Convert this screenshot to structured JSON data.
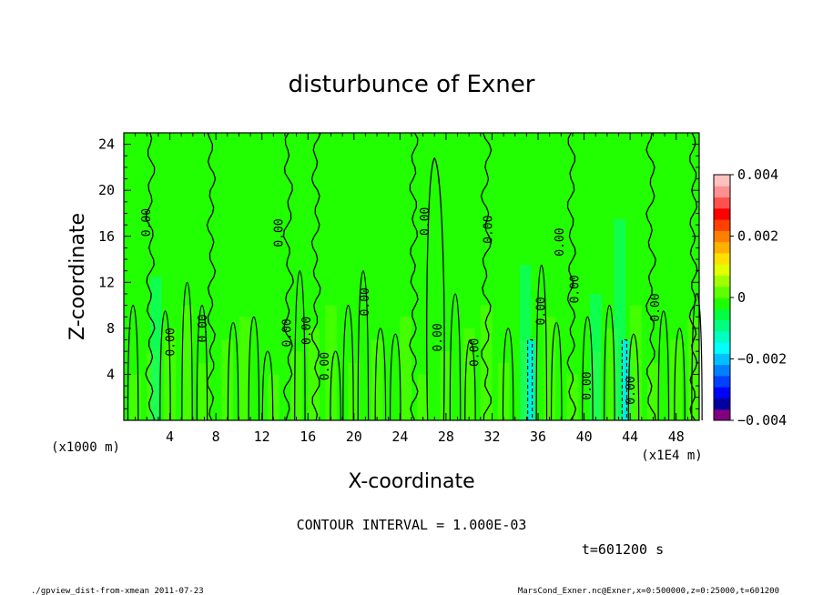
{
  "chart_data": {
    "type": "heatmap",
    "title": "disturbunce of Exner",
    "xlabel": "X-coordinate",
    "ylabel": "Z-coordinate",
    "x_unit_note": "(x1E4 m)",
    "y_unit_note": "(x1000 m)",
    "xlim": [
      0,
      50
    ],
    "ylim": [
      0,
      25
    ],
    "x_ticks": [
      4,
      8,
      12,
      16,
      20,
      24,
      28,
      32,
      36,
      40,
      44,
      48
    ],
    "y_ticks": [
      4,
      8,
      12,
      16,
      20,
      24
    ],
    "colorbar": {
      "range": [
        -0.004,
        0.004
      ],
      "tick_values": [
        0.004,
        0.002,
        0,
        -0.002,
        -0.004
      ],
      "tick_labels": [
        "0.004",
        "0.002",
        "0",
        "−0.002",
        "−0.004"
      ],
      "colors": [
        "#800080",
        "#0000a0",
        "#0000ff",
        "#0040ff",
        "#0080ff",
        "#00c0ff",
        "#00ffff",
        "#00ffc0",
        "#00ff80",
        "#00ff40",
        "#20ff00",
        "#60ff00",
        "#a0ff00",
        "#e0ff00",
        "#ffe000",
        "#ffb000",
        "#ff8000",
        "#ff4000",
        "#ff0000",
        "#ff5050",
        "#ff9090",
        "#ffc0c0"
      ]
    },
    "background_color": "#22ff00",
    "contour_interval_text": "CONTOUR INTERVAL = 1.000E-03",
    "contour_labels": [
      {
        "text": "0.00",
        "x": 2.3,
        "z": 17.2
      },
      {
        "text": "0.00",
        "x": 13.8,
        "z": 16.3
      },
      {
        "text": "0.00",
        "x": 26.5,
        "z": 17.3
      },
      {
        "text": "0.00",
        "x": 32.0,
        "z": 16.6
      },
      {
        "text": "0.00",
        "x": 38.2,
        "z": 15.5
      },
      {
        "text": "0.00",
        "x": 39.5,
        "z": 11.4
      },
      {
        "text": "0.00",
        "x": 46.5,
        "z": 9.8
      },
      {
        "text": "0.00",
        "x": 21.3,
        "z": 10.3
      },
      {
        "text": "0.00",
        "x": 36.6,
        "z": 9.5
      },
      {
        "text": "0.00",
        "x": 16.2,
        "z": 7.8
      },
      {
        "text": "0.00",
        "x": 14.5,
        "z": 7.6
      },
      {
        "text": "0.00",
        "x": 7.2,
        "z": 8.0
      },
      {
        "text": "0.00",
        "x": 27.6,
        "z": 7.2
      },
      {
        "text": "0.00",
        "x": 4.4,
        "z": 6.8
      },
      {
        "text": "0.00",
        "x": 30.8,
        "z": 5.9
      },
      {
        "text": "0.00",
        "x": 17.8,
        "z": 4.7
      },
      {
        "text": "0.00",
        "x": 40.6,
        "z": 3.0
      },
      {
        "text": "0.00",
        "x": 44.4,
        "z": 2.6
      }
    ],
    "time_label": "t=601200 s",
    "footer_left": "./gpview_dist-from-xmean  2011-07-23",
    "footer_right": "MarsCond_Exner.nc@Exner,x=0:500000,z=0:25000,t=601200"
  }
}
